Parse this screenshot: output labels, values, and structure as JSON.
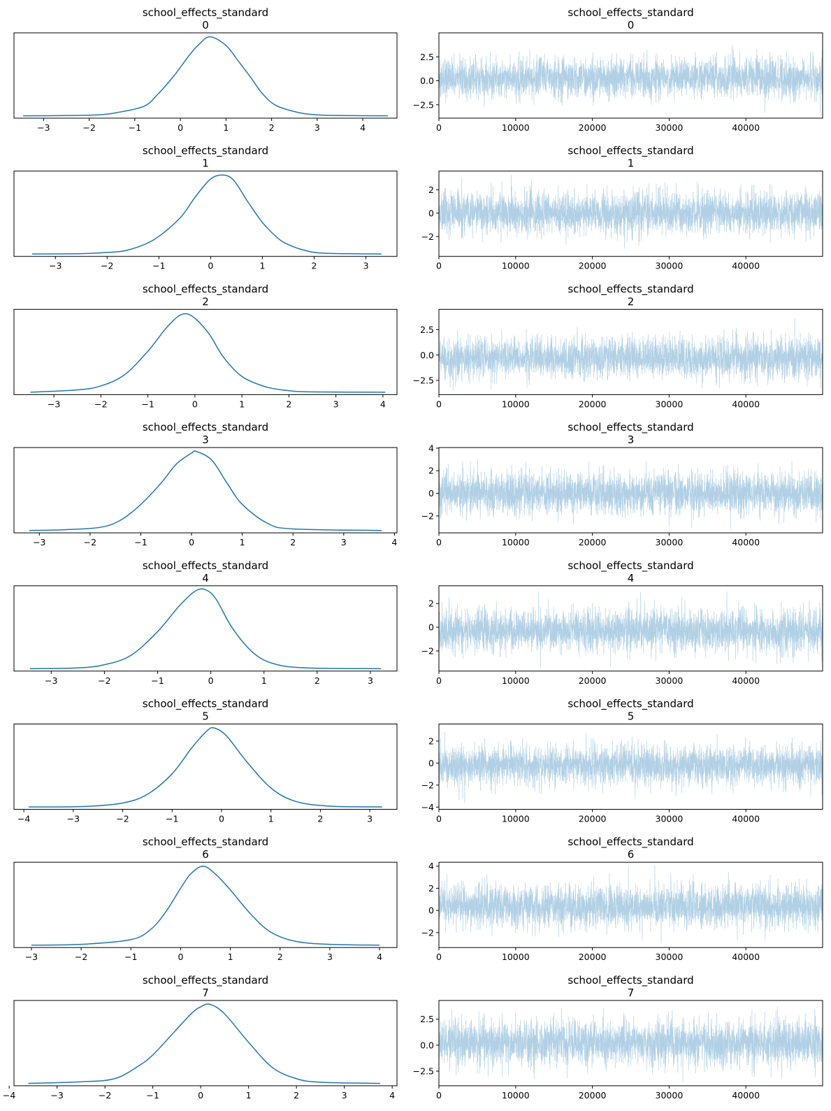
{
  "chart_data": [
    {
      "type": "line",
      "subplot": "density",
      "title": "school_effects_standard",
      "subtitle": "0",
      "x": [
        -3.45,
        -2.5,
        -1.8,
        -1.4,
        -0.8,
        -0.5,
        -0.15,
        0.2,
        0.4,
        0.65,
        1.0,
        1.3,
        1.55,
        1.8,
        2.1,
        2.6,
        3.0,
        3.5,
        4.55
      ],
      "y": [
        0.0,
        0.003,
        0.012,
        0.04,
        0.12,
        0.27,
        0.5,
        0.77,
        0.9,
        1.0,
        0.89,
        0.67,
        0.48,
        0.28,
        0.13,
        0.04,
        0.012,
        0.003,
        0.0
      ],
      "xlim": [
        -3.65,
        4.75
      ],
      "ylim": [
        -0.03,
        1.05
      ],
      "xticks": [
        -3,
        -2,
        -1,
        0,
        1,
        2,
        3,
        4
      ],
      "xtick_labels": [
        "−3",
        "−2",
        "−1",
        "0",
        "1",
        "2",
        "3",
        "4"
      ],
      "yticks": [],
      "ytick_labels": []
    },
    {
      "type": "line",
      "subplot": "trace",
      "title": "school_effects_standard",
      "subtitle": "0",
      "x_range": [
        0,
        49999
      ],
      "mean": 0.3,
      "sd": 1.0,
      "ymin": -3.4,
      "ymax": 4.55,
      "xlim": [
        0,
        49999
      ],
      "ylim": [
        -3.9,
        5.0
      ],
      "xticks": [
        0,
        10000,
        20000,
        30000,
        40000
      ],
      "xtick_labels": [
        "0",
        "10000",
        "20000",
        "30000",
        "40000"
      ],
      "yticks": [
        -2.5,
        0.0,
        2.5
      ],
      "ytick_labels": [
        "−2.5",
        "0.0",
        "2.5"
      ]
    },
    {
      "type": "line",
      "subplot": "density",
      "title": "school_effects_standard",
      "subtitle": "1",
      "x": [
        -3.45,
        -2.5,
        -2.0,
        -1.6,
        -1.1,
        -0.6,
        -0.3,
        0.0,
        0.25,
        0.45,
        0.7,
        1.0,
        1.3,
        1.5,
        1.8,
        2.2,
        3.3
      ],
      "y": [
        0.0,
        0.005,
        0.02,
        0.05,
        0.18,
        0.45,
        0.72,
        0.95,
        1.0,
        0.93,
        0.68,
        0.4,
        0.2,
        0.12,
        0.05,
        0.01,
        0.0
      ],
      "xlim": [
        -3.8,
        3.6
      ],
      "ylim": [
        -0.03,
        1.05
      ],
      "xticks": [
        -3,
        -2,
        -1,
        0,
        1,
        2,
        3
      ],
      "xtick_labels": [
        "−3",
        "−2",
        "−1",
        "0",
        "1",
        "2",
        "3"
      ],
      "yticks": [],
      "ytick_labels": []
    },
    {
      "type": "line",
      "subplot": "trace",
      "title": "school_effects_standard",
      "subtitle": "1",
      "x_range": [
        0,
        49999
      ],
      "mean": 0.0,
      "sd": 0.9,
      "ymin": -3.3,
      "ymax": 3.3,
      "xlim": [
        0,
        49999
      ],
      "ylim": [
        -3.7,
        3.6
      ],
      "xticks": [
        0,
        10000,
        20000,
        30000,
        40000
      ],
      "xtick_labels": [
        "0",
        "10000",
        "20000",
        "30000",
        "40000"
      ],
      "yticks": [
        -2,
        0,
        2
      ],
      "ytick_labels": [
        "−2",
        "0",
        "2"
      ]
    },
    {
      "type": "line",
      "subplot": "density",
      "title": "school_effects_standard",
      "subtitle": "2",
      "x": [
        -3.5,
        -2.5,
        -2.0,
        -1.5,
        -1.0,
        -0.6,
        -0.3,
        -0.05,
        0.3,
        0.6,
        1.0,
        1.5,
        2.0,
        2.5,
        4.05
      ],
      "y": [
        0.0,
        0.03,
        0.08,
        0.22,
        0.52,
        0.82,
        0.98,
        0.96,
        0.74,
        0.45,
        0.2,
        0.07,
        0.02,
        0.005,
        0.0
      ],
      "xlim": [
        -3.85,
        4.3
      ],
      "ylim": [
        -0.03,
        1.05
      ],
      "xticks": [
        -3,
        -2,
        -1,
        0,
        1,
        2,
        3,
        4
      ],
      "xtick_labels": [
        "−3",
        "−2",
        "−1",
        "0",
        "1",
        "2",
        "3",
        "4"
      ],
      "yticks": [],
      "ytick_labels": []
    },
    {
      "type": "line",
      "subplot": "trace",
      "title": "school_effects_standard",
      "subtitle": "2",
      "x_range": [
        0,
        49999
      ],
      "mean": -0.3,
      "sd": 1.0,
      "ymin": -3.5,
      "ymax": 4.05,
      "xlim": [
        0,
        49999
      ],
      "ylim": [
        -3.9,
        4.5
      ],
      "xticks": [
        0,
        10000,
        20000,
        30000,
        40000
      ],
      "xtick_labels": [
        "0",
        "10000",
        "20000",
        "30000",
        "40000"
      ],
      "yticks": [
        -2.5,
        0.0,
        2.5
      ],
      "ytick_labels": [
        "−2.5",
        "0.0",
        "2.5"
      ]
    },
    {
      "type": "line",
      "subplot": "density",
      "title": "school_effects_standard",
      "subtitle": "3",
      "x": [
        -3.2,
        -2.5,
        -1.8,
        -1.4,
        -1.0,
        -0.6,
        -0.3,
        0.0,
        0.1,
        0.4,
        0.7,
        1.0,
        1.5,
        2.0,
        3.75
      ],
      "y": [
        0.0,
        0.01,
        0.04,
        0.13,
        0.33,
        0.6,
        0.84,
        0.98,
        1.0,
        0.89,
        0.6,
        0.33,
        0.09,
        0.02,
        0.0
      ],
      "xlim": [
        -3.5,
        4.05
      ],
      "ylim": [
        -0.03,
        1.05
      ],
      "xticks": [
        -3,
        -2,
        -1,
        0,
        1,
        2,
        3,
        4
      ],
      "xtick_labels": [
        "−3",
        "−2",
        "−1",
        "0",
        "1",
        "2",
        "3",
        "4"
      ],
      "yticks": [],
      "ytick_labels": []
    },
    {
      "type": "line",
      "subplot": "trace",
      "title": "school_effects_standard",
      "subtitle": "3",
      "x_range": [
        0,
        49999
      ],
      "mean": 0.0,
      "sd": 0.95,
      "ymin": -3.2,
      "ymax": 3.75,
      "xlim": [
        0,
        49999
      ],
      "ylim": [
        -3.5,
        4.05
      ],
      "xticks": [
        0,
        10000,
        20000,
        30000,
        40000
      ],
      "xtick_labels": [
        "0",
        "10000",
        "20000",
        "30000",
        "40000"
      ],
      "yticks": [
        -2,
        0,
        2,
        4
      ],
      "ytick_labels": [
        "−2",
        "0",
        "2",
        "4"
      ]
    },
    {
      "type": "line",
      "subplot": "density",
      "title": "school_effects_standard",
      "subtitle": "4",
      "x": [
        -3.4,
        -2.5,
        -2.0,
        -1.5,
        -1.0,
        -0.6,
        -0.3,
        -0.1,
        0.1,
        0.4,
        0.8,
        1.2,
        1.8,
        3.2
      ],
      "y": [
        0.0,
        0.01,
        0.05,
        0.17,
        0.47,
        0.79,
        0.98,
        1.0,
        0.88,
        0.52,
        0.2,
        0.06,
        0.01,
        0.0
      ],
      "xlim": [
        -3.7,
        3.5
      ],
      "ylim": [
        -0.03,
        1.05
      ],
      "xticks": [
        -3,
        -2,
        -1,
        0,
        1,
        2,
        3
      ],
      "xtick_labels": [
        "−3",
        "−2",
        "−1",
        "0",
        "1",
        "2",
        "3"
      ],
      "yticks": [],
      "ytick_labels": []
    },
    {
      "type": "line",
      "subplot": "trace",
      "title": "school_effects_standard",
      "subtitle": "4",
      "x_range": [
        0,
        49999
      ],
      "mean": -0.3,
      "sd": 0.9,
      "ymin": -3.4,
      "ymax": 3.2,
      "xlim": [
        0,
        49999
      ],
      "ylim": [
        -3.7,
        3.5
      ],
      "xticks": [
        0,
        10000,
        20000,
        30000,
        40000
      ],
      "xtick_labels": [
        "0",
        "10000",
        "20000",
        "30000",
        "40000"
      ],
      "yticks": [
        -2,
        0,
        2
      ],
      "ytick_labels": [
        "−2",
        "0",
        "2"
      ]
    },
    {
      "type": "line",
      "subplot": "density",
      "title": "school_effects_standard",
      "subtitle": "5",
      "x": [
        -3.9,
        -2.8,
        -2.0,
        -1.5,
        -1.0,
        -0.6,
        -0.3,
        -0.15,
        0.1,
        0.5,
        1.0,
        1.5,
        2.2,
        3.25
      ],
      "y": [
        0.0,
        0.005,
        0.05,
        0.16,
        0.42,
        0.75,
        0.96,
        1.0,
        0.9,
        0.58,
        0.24,
        0.07,
        0.01,
        0.0
      ],
      "xlim": [
        -4.2,
        3.55
      ],
      "ylim": [
        -0.03,
        1.05
      ],
      "xticks": [
        -4,
        -3,
        -2,
        -1,
        0,
        1,
        2,
        3
      ],
      "xtick_labels": [
        "−4",
        "−3",
        "−2",
        "−1",
        "0",
        "1",
        "2",
        "3"
      ],
      "yticks": [],
      "ytick_labels": []
    },
    {
      "type": "line",
      "subplot": "trace",
      "title": "school_effects_standard",
      "subtitle": "5",
      "x_range": [
        0,
        49999
      ],
      "mean": -0.2,
      "sd": 0.9,
      "ymin": -3.9,
      "ymax": 3.25,
      "xlim": [
        0,
        49999
      ],
      "ylim": [
        -4.2,
        3.55
      ],
      "xticks": [
        0,
        10000,
        20000,
        30000,
        40000
      ],
      "xtick_labels": [
        "0",
        "10000",
        "20000",
        "30000",
        "40000"
      ],
      "yticks": [
        -4,
        -2,
        0,
        2
      ],
      "ytick_labels": [
        "−4",
        "−2",
        "0",
        "2"
      ]
    },
    {
      "type": "line",
      "subplot": "density",
      "title": "school_effects_standard",
      "subtitle": "6",
      "x": [
        -3.0,
        -2.0,
        -1.0,
        -0.6,
        -0.3,
        0.0,
        0.2,
        0.45,
        0.7,
        1.0,
        1.4,
        1.8,
        2.3,
        3.0,
        4.0
      ],
      "y": [
        0.0,
        0.01,
        0.07,
        0.2,
        0.42,
        0.72,
        0.9,
        1.0,
        0.9,
        0.7,
        0.4,
        0.17,
        0.05,
        0.01,
        0.0
      ],
      "xlim": [
        -3.35,
        4.35
      ],
      "ylim": [
        -0.03,
        1.05
      ],
      "xticks": [
        -3,
        -2,
        -1,
        0,
        1,
        2,
        3,
        4
      ],
      "xtick_labels": [
        "−3",
        "−2",
        "−1",
        "0",
        "1",
        "2",
        "3",
        "4"
      ],
      "yticks": [],
      "ytick_labels": []
    },
    {
      "type": "line",
      "subplot": "trace",
      "title": "school_effects_standard",
      "subtitle": "6",
      "x_range": [
        0,
        49999
      ],
      "mean": 0.4,
      "sd": 0.95,
      "ymin": -3.0,
      "ymax": 4.05,
      "xlim": [
        0,
        49999
      ],
      "ylim": [
        -3.35,
        4.35
      ],
      "xticks": [
        0,
        10000,
        20000,
        30000,
        40000
      ],
      "xtick_labels": [
        "0",
        "10000",
        "20000",
        "30000",
        "40000"
      ],
      "yticks": [
        -2,
        0,
        2,
        4
      ],
      "ytick_labels": [
        "−2",
        "0",
        "2",
        "4"
      ]
    },
    {
      "type": "line",
      "subplot": "density",
      "title": "school_effects_standard",
      "subtitle": "7",
      "x": [
        -3.6,
        -2.5,
        -1.8,
        -1.3,
        -1.0,
        -0.6,
        -0.2,
        0.0,
        0.2,
        0.5,
        1.0,
        1.5,
        2.0,
        2.5,
        3.75
      ],
      "y": [
        0.0,
        0.02,
        0.06,
        0.22,
        0.36,
        0.62,
        0.88,
        0.97,
        1.0,
        0.88,
        0.52,
        0.2,
        0.06,
        0.015,
        0.0
      ],
      "xlim": [
        -3.9,
        4.1
      ],
      "ylim": [
        -0.03,
        1.05
      ],
      "xticks": [
        -4,
        -3,
        -2,
        -1,
        0,
        1,
        2,
        3,
        4
      ],
      "xtick_labels": [
        "−4",
        "−3",
        "−2",
        "−1",
        "0",
        "1",
        "2",
        "3",
        "4"
      ],
      "yticks": [],
      "ytick_labels": []
    },
    {
      "type": "line",
      "subplot": "trace",
      "title": "school_effects_standard",
      "subtitle": "7",
      "x_range": [
        0,
        49999
      ],
      "mean": 0.2,
      "sd": 1.1,
      "ymin": -3.6,
      "ymax": 3.9,
      "xlim": [
        0,
        49999
      ],
      "ylim": [
        -3.9,
        4.3
      ],
      "xticks": [
        0,
        10000,
        20000,
        30000,
        40000
      ],
      "xtick_labels": [
        "0",
        "10000",
        "20000",
        "30000",
        "40000"
      ],
      "yticks": [
        -2.5,
        0.0,
        2.5
      ],
      "ytick_labels": [
        "−2.5",
        "0.0",
        "2.5"
      ]
    }
  ]
}
